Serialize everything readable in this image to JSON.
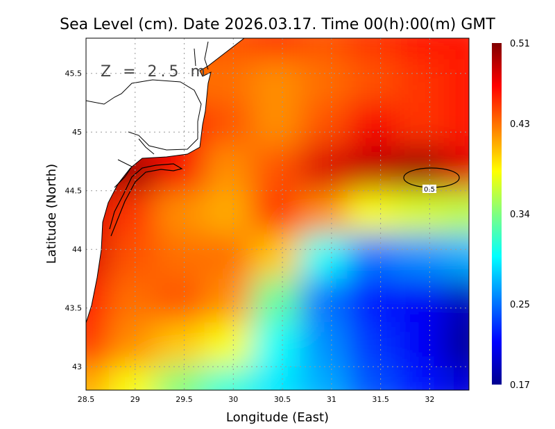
{
  "chart_data": {
    "type": "heatmap",
    "title": "Sea Level (cm). Date 2026.03.17. Time 00(h):00(m) GMT",
    "xlabel": "Longitude (East)",
    "ylabel": "Latitude (North)",
    "annotation": "Z = 2.5 m",
    "xlim": [
      28.5,
      32.4
    ],
    "ylim": [
      42.8,
      45.8
    ],
    "xticks": [
      28.5,
      29,
      29.5,
      30,
      30.5,
      31,
      31.5,
      32
    ],
    "xtick_labels": [
      "28.5",
      "29",
      "29.5",
      "30",
      "30.5",
      "31",
      "31.5",
      "32"
    ],
    "yticks": [
      43,
      43.5,
      44,
      44.5,
      45,
      45.5
    ],
    "ytick_labels": [
      "43",
      "43.5",
      "44",
      "44.5",
      "45",
      "45.5"
    ],
    "grid": true,
    "colormap": "jet",
    "colorbar": {
      "min": 0.17,
      "max": 0.51,
      "tick_labels": [
        "0.51",
        "0.43",
        "0.34",
        "0.25",
        "0.17"
      ],
      "ticks": [
        0.51,
        0.43,
        0.34,
        0.25,
        0.17
      ],
      "placement": "right"
    },
    "contour_label": "0.5",
    "grid_lon": [
      28.5,
      28.99,
      29.47,
      29.96,
      30.45,
      30.94,
      31.42,
      31.91,
      32.4
    ],
    "grid_lat": [
      45.8,
      45.42,
      45.05,
      44.68,
      44.3,
      43.93,
      43.55,
      43.18,
      42.8
    ],
    "values": [
      [
        null,
        null,
        null,
        0.44,
        0.45,
        0.44,
        0.45,
        0.46,
        0.46
      ],
      [
        null,
        null,
        null,
        0.43,
        0.42,
        0.43,
        0.44,
        0.45,
        0.46
      ],
      [
        null,
        null,
        0.46,
        0.44,
        0.42,
        0.44,
        0.47,
        0.45,
        0.46
      ],
      [
        null,
        0.5,
        0.47,
        0.42,
        0.44,
        0.48,
        0.49,
        0.5,
        0.48
      ],
      [
        0.48,
        0.45,
        0.42,
        0.41,
        0.45,
        0.42,
        0.38,
        0.37,
        0.36
      ],
      [
        0.48,
        0.44,
        0.43,
        0.43,
        0.4,
        0.3,
        0.25,
        0.26,
        0.27
      ],
      [
        0.46,
        0.43,
        0.44,
        0.42,
        0.33,
        0.25,
        0.22,
        0.21,
        0.19
      ],
      [
        0.45,
        0.42,
        0.4,
        0.38,
        0.3,
        0.26,
        0.23,
        0.21,
        0.18
      ],
      [
        0.41,
        0.38,
        0.34,
        0.31,
        0.29,
        0.27,
        0.24,
        0.22,
        0.2
      ]
    ]
  }
}
